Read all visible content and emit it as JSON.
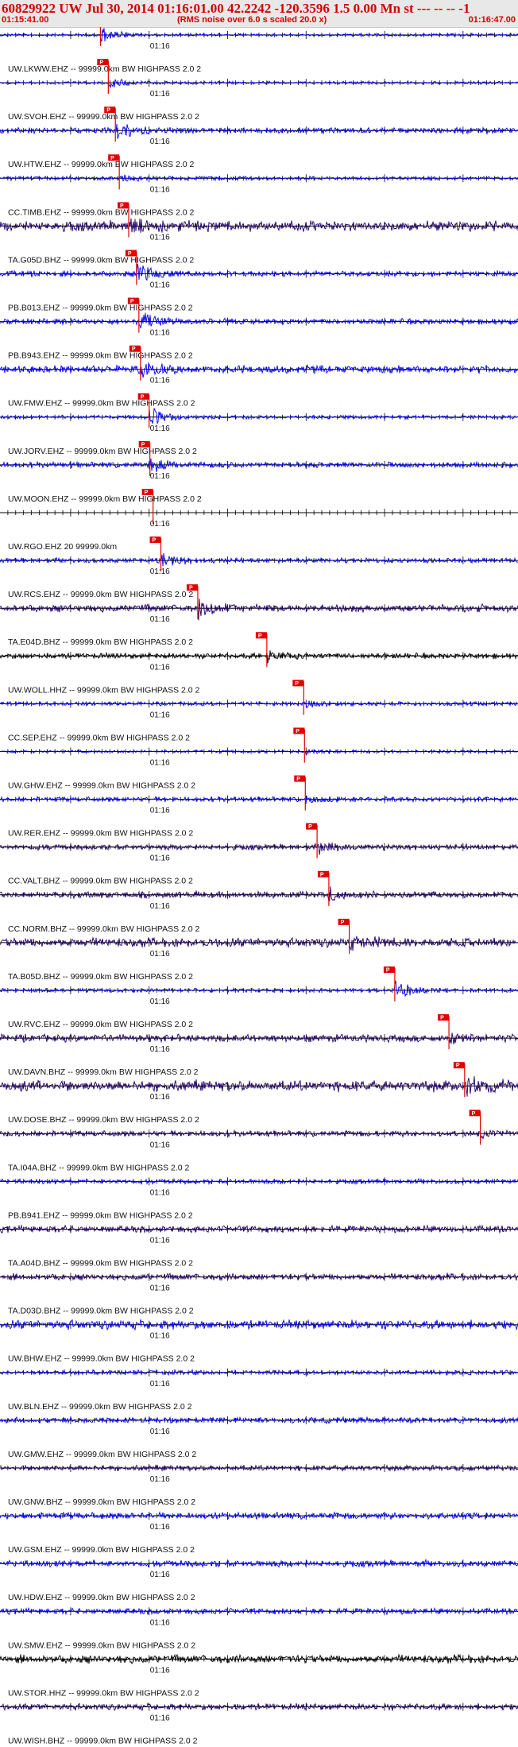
{
  "header": {
    "title": "60829922 UW Jul 30, 2014 01:16:01.00   42.2242 -120.3596  1.5 0.00 Mn st --- -- --   -1",
    "start_time": "01:15:41.00",
    "end_time": "01:16:47.00",
    "note": "(RMS noise over 6.0 s scaled 20.0 x)"
  },
  "colors": {
    "trace_blue": "#0000ff",
    "trace_navy": "#22006a",
    "trace_black": "#000000",
    "pick": "#e00000",
    "label": "#111111"
  },
  "chart_data": {
    "type": "line",
    "title": "60829922 UW Jul 30, 2014 01:16:01.00   42.2242 -120.3596  1.5 0.00 Mn st --- -- --   -1",
    "x_range": [
      "01:15:41.00",
      "01:16:47.00"
    ],
    "time_mark": "01:16",
    "pick_label": "P",
    "series": [
      {
        "name": "UW.LKWW.EHZ -- 99999.0km BW  HIGHPASS  2.0  2",
        "color": "blue",
        "pick_s": 12.8,
        "event": 1.0,
        "noise": 0.15
      },
      {
        "name": "UW.SVOH.EHZ -- 99999.0km BW  HIGHPASS  2.0  2",
        "color": "blue",
        "pick_s": 13.8,
        "event": 0.6,
        "noise": 0.15
      },
      {
        "name": "UW.HTW.EHZ -- 99999.0km BW  HIGHPASS  2.0  2",
        "color": "blue",
        "pick_s": 14.7,
        "event": 1.0,
        "noise": 0.3
      },
      {
        "name": "CC.TIMB.EHZ -- 99999.0km BW  HIGHPASS  2.0  2",
        "color": "blue",
        "pick_s": 15.2,
        "event": 0.4,
        "noise": 0.2
      },
      {
        "name": "TA.G05D.BHZ -- 99999.0km BW  HIGHPASS  2.0  2",
        "color": "navy",
        "pick_s": 16.4,
        "event": 0.9,
        "noise": 0.55
      },
      {
        "name": "PB.B013.EHZ -- 99999.0km BW  HIGHPASS  2.0  2",
        "color": "blue",
        "pick_s": 17.4,
        "event": 1.0,
        "noise": 0.3
      },
      {
        "name": "PB.B943.EHZ -- 99999.0km BW  HIGHPASS  2.0  2",
        "color": "blue",
        "pick_s": 17.7,
        "event": 1.0,
        "noise": 0.3
      },
      {
        "name": "UW.FMW.EHZ -- 99999.0km BW  HIGHPASS  2.0  2",
        "color": "blue",
        "pick_s": 17.9,
        "event": 1.0,
        "noise": 0.4
      },
      {
        "name": "UW.JORV.EHZ -- 99999.0km BW  HIGHPASS  2.0  2",
        "color": "blue",
        "pick_s": 19.0,
        "event": 1.0,
        "noise": 0.2
      },
      {
        "name": "UW.MOON.EHZ -- 99999.0km BW  HIGHPASS  2.0  2",
        "color": "blue",
        "pick_s": 19.1,
        "event": 0.7,
        "noise": 0.3
      },
      {
        "name": "UW.RGO.EHZ 20 99999.0km",
        "color": "blue",
        "pick_s": 19.5,
        "event": 0.0,
        "noise": 0.0
      },
      {
        "name": "UW.RCS.EHZ -- 99999.0km BW  HIGHPASS  2.0  2",
        "color": "blue",
        "pick_s": 20.5,
        "event": 0.9,
        "noise": 0.25
      },
      {
        "name": "TA.E04D.BHZ -- 99999.0km BW  HIGHPASS  2.0  2",
        "color": "navy",
        "pick_s": 25.2,
        "event": 1.0,
        "noise": 0.4
      },
      {
        "name": "UW.WOLL.HHZ -- 99999.0km BW  HIGHPASS  2.0  2",
        "color": "black",
        "pick_s": 34.0,
        "event": 0.5,
        "noise": 0.3
      },
      {
        "name": "CC.SEP.EHZ -- 99999.0km BW  HIGHPASS  2.0  2",
        "color": "blue",
        "pick_s": 38.7,
        "event": 0.4,
        "noise": 0.2
      },
      {
        "name": "UW.GHW.EHZ -- 99999.0km BW  HIGHPASS  2.0  2",
        "color": "blue",
        "pick_s": 38.8,
        "event": 0.3,
        "noise": 0.15
      },
      {
        "name": "UW.RER.EHZ -- 99999.0km BW  HIGHPASS  2.0  2",
        "color": "blue",
        "pick_s": 38.9,
        "event": 0.4,
        "noise": 0.25
      },
      {
        "name": "CC.VALT.BHZ -- 99999.0km BW  HIGHPASS  2.0  2",
        "color": "navy",
        "pick_s": 40.4,
        "event": 0.6,
        "noise": 0.3
      },
      {
        "name": "CC.NORM.BHZ -- 99999.0km BW  HIGHPASS  2.0  2",
        "color": "navy",
        "pick_s": 41.9,
        "event": 0.6,
        "noise": 0.35
      },
      {
        "name": "TA.B05D.BHZ -- 99999.0km BW  HIGHPASS  2.0  2",
        "color": "navy",
        "pick_s": 44.5,
        "event": 0.6,
        "noise": 0.5
      },
      {
        "name": "UW.RVC.EHZ -- 99999.0km BW  HIGHPASS  2.0  2",
        "color": "blue",
        "pick_s": 50.3,
        "event": 1.0,
        "noise": 0.2
      },
      {
        "name": "UW.DAVN.BHZ -- 99999.0km BW  HIGHPASS  2.0  2",
        "color": "navy",
        "pick_s": 57.2,
        "event": 0.6,
        "noise": 0.4
      },
      {
        "name": "UW.DOSE.BHZ -- 99999.0km BW  HIGHPASS  2.0  2",
        "color": "navy",
        "pick_s": 59.2,
        "event": 1.0,
        "noise": 0.6
      },
      {
        "name": "TA.I04A.BHZ -- 99999.0km BW  HIGHPASS  2.0  2",
        "color": "navy",
        "pick_s": 61.2,
        "event": 0.5,
        "noise": 0.3
      },
      {
        "name": "PB.B941.EHZ -- 99999.0km BW  HIGHPASS  2.0  2",
        "color": "blue",
        "pick_s": null,
        "event": 0.0,
        "noise": 0.25
      },
      {
        "name": "TA.A04D.BHZ -- 99999.0km BW  HIGHPASS  2.0  2",
        "color": "navy",
        "pick_s": null,
        "event": 0.0,
        "noise": 0.35
      },
      {
        "name": "TA.D03D.BHZ -- 99999.0km BW  HIGHPASS  2.0  2",
        "color": "navy",
        "pick_s": null,
        "event": 0.0,
        "noise": 0.35
      },
      {
        "name": "UW.BHW.EHZ -- 99999.0km BW  HIGHPASS  2.0  2",
        "color": "blue",
        "pick_s": null,
        "event": 0.0,
        "noise": 0.5
      },
      {
        "name": "UW.BLN.EHZ -- 99999.0km BW  HIGHPASS  2.0  2",
        "color": "blue",
        "pick_s": null,
        "event": 0.0,
        "noise": 0.25
      },
      {
        "name": "UW.GMW.EHZ -- 99999.0km BW  HIGHPASS  2.0  2",
        "color": "blue",
        "pick_s": null,
        "event": 0.0,
        "noise": 0.3
      },
      {
        "name": "UW.GNW.BHZ -- 99999.0km BW  HIGHPASS  2.0  2",
        "color": "navy",
        "pick_s": null,
        "event": 0.0,
        "noise": 0.3
      },
      {
        "name": "UW.GSM.EHZ -- 99999.0km BW  HIGHPASS  2.0  2",
        "color": "blue",
        "pick_s": null,
        "event": 0.0,
        "noise": 0.35
      },
      {
        "name": "UW.HDW.EHZ -- 99999.0km BW  HIGHPASS  2.0  2",
        "color": "blue",
        "pick_s": null,
        "event": 0.0,
        "noise": 0.35
      },
      {
        "name": "UW.SMW.EHZ -- 99999.0km BW  HIGHPASS  2.0  2",
        "color": "blue",
        "pick_s": null,
        "event": 0.0,
        "noise": 0.3
      },
      {
        "name": "UW.STOR.HHZ -- 99999.0km BW  HIGHPASS  2.0  2",
        "color": "black",
        "pick_s": null,
        "event": 0.0,
        "noise": 0.45
      },
      {
        "name": "UW.WISH.BHZ -- 99999.0km BW  HIGHPASS  2.0  2",
        "color": "navy",
        "pick_s": null,
        "event": 0.0,
        "noise": 0.35
      }
    ]
  }
}
